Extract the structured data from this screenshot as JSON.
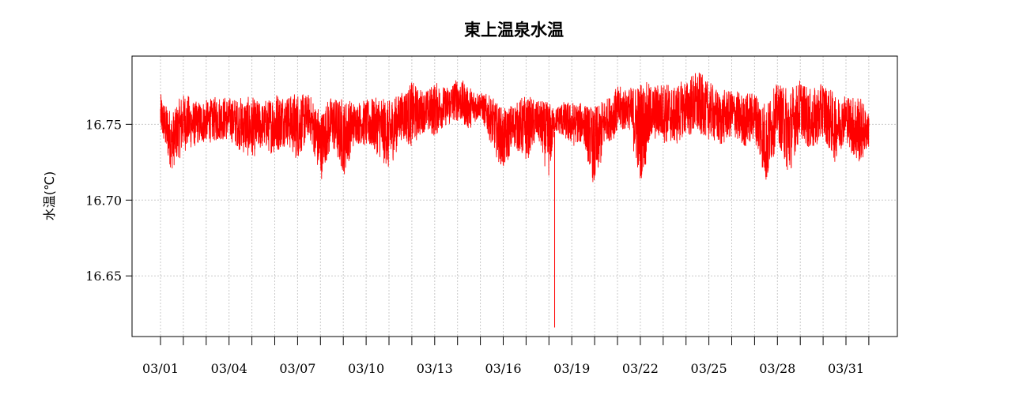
{
  "chart_data": {
    "type": "line",
    "title": "東上温泉水温",
    "xlabel": "",
    "ylabel": "水温(℃)",
    "ylim": [
      16.61,
      16.795
    ],
    "yticks": [
      16.65,
      16.7,
      16.75
    ],
    "ytick_labels": [
      "16.65",
      "16.70",
      "16.75"
    ],
    "xlim": [
      "03/01",
      "04/01"
    ],
    "xtick_labels": [
      "03/01",
      "03/04",
      "03/07",
      "03/10",
      "03/13",
      "03/16",
      "03/19",
      "03/22",
      "03/25",
      "03/28",
      "03/31"
    ],
    "grid": true,
    "legend": "none",
    "series": [
      {
        "color": "#ff0000",
        "x": [
          "03/01",
          "03/01 12:00",
          "03/02",
          "03/02 12:00",
          "03/03",
          "03/03 12:00",
          "03/04",
          "03/04 12:00",
          "03/05",
          "03/05 12:00",
          "03/06",
          "03/06 12:00",
          "03/07",
          "03/07 12:00",
          "03/08",
          "03/08 12:00",
          "03/09",
          "03/09 12:00",
          "03/10",
          "03/10 12:00",
          "03/11",
          "03/11 12:00",
          "03/12",
          "03/12 12:00",
          "03/13",
          "03/13 12:00",
          "03/14",
          "03/14 12:00",
          "03/15",
          "03/15 12:00",
          "03/16",
          "03/16 12:00",
          "03/17",
          "03/17 12:00",
          "03/18",
          "03/18 06:00",
          "03/18 12:00",
          "03/19",
          "03/19 12:00",
          "03/20",
          "03/20 12:00",
          "03/21",
          "03/21 12:00",
          "03/22",
          "03/22 12:00",
          "03/23",
          "03/23 12:00",
          "03/24",
          "03/24 12:00",
          "03/25",
          "03/25 12:00",
          "03/26",
          "03/26 12:00",
          "03/27",
          "03/27 12:00",
          "03/28",
          "03/28 12:00",
          "03/29",
          "03/29 12:00",
          "03/30",
          "03/30 12:00",
          "03/31",
          "03/31 12:00",
          "04/01"
        ],
        "min": [
          16.743,
          16.718,
          16.732,
          16.735,
          16.738,
          16.738,
          16.74,
          16.732,
          16.727,
          16.735,
          16.728,
          16.737,
          16.725,
          16.742,
          16.712,
          16.735,
          16.715,
          16.738,
          16.735,
          16.73,
          16.718,
          16.74,
          16.735,
          16.745,
          16.742,
          16.748,
          16.752,
          16.745,
          16.755,
          16.735,
          16.718,
          16.735,
          16.725,
          16.74,
          16.712,
          16.745,
          16.742,
          16.735,
          16.738,
          16.706,
          16.738,
          16.742,
          16.748,
          16.708,
          16.74,
          16.738,
          16.735,
          16.742,
          16.742,
          16.74,
          16.735,
          16.742,
          16.733,
          16.74,
          16.708,
          16.74,
          16.712,
          16.742,
          16.73,
          16.74,
          16.725,
          16.74,
          16.72,
          16.735
        ],
        "max": [
          16.77,
          16.758,
          16.772,
          16.765,
          16.766,
          16.769,
          16.768,
          16.768,
          16.768,
          16.765,
          16.772,
          16.77,
          16.772,
          16.77,
          16.76,
          16.77,
          16.768,
          16.765,
          16.766,
          16.77,
          16.768,
          16.772,
          16.778,
          16.772,
          16.778,
          16.775,
          16.782,
          16.775,
          16.772,
          16.768,
          16.76,
          16.765,
          16.77,
          16.765,
          16.768,
          16.76,
          16.765,
          16.765,
          16.765,
          16.762,
          16.768,
          16.775,
          16.774,
          16.78,
          16.776,
          16.778,
          16.776,
          16.78,
          16.786,
          16.778,
          16.772,
          16.774,
          16.77,
          16.773,
          16.765,
          16.778,
          16.776,
          16.78,
          16.772,
          16.78,
          16.77,
          16.77,
          16.771,
          16.758
        ],
        "spike": {
          "x": "03/18 06:00",
          "min": 16.616
        }
      }
    ]
  }
}
